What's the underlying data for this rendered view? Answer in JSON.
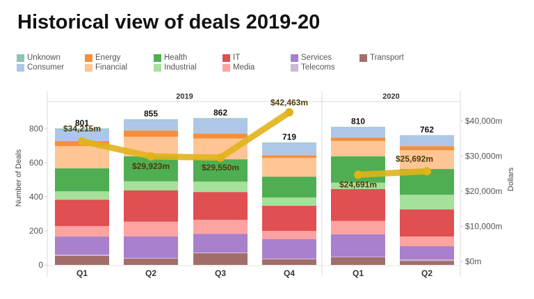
{
  "title": "Historical view of deals 2019-20",
  "legend": [
    {
      "name": "Unknown",
      "color": "#8fc3b7"
    },
    {
      "name": "Consumer",
      "color": "#aec7e8"
    },
    {
      "name": "Energy",
      "color": "#f58f3b"
    },
    {
      "name": "Financial",
      "color": "#ffc594"
    },
    {
      "name": "Health",
      "color": "#4fae52"
    },
    {
      "name": "Industrial",
      "color": "#a5e19a"
    },
    {
      "name": "IT",
      "color": "#e04f51"
    },
    {
      "name": "Media",
      "color": "#ffa3a1"
    },
    {
      "name": "Services",
      "color": "#a980cb"
    },
    {
      "name": "Telecoms",
      "color": "#cdb8dc"
    },
    {
      "name": "Transport",
      "color": "#a26e69"
    }
  ],
  "chart_data": {
    "type": "bar",
    "stacked": true,
    "title": "Historical view of deals 2019-20",
    "groups": [
      {
        "label": "2019",
        "categories": [
          "Q1",
          "Q2",
          "Q3",
          "Q4"
        ]
      },
      {
        "label": "2020",
        "categories": [
          "Q1",
          "Q2"
        ]
      }
    ],
    "categories": [
      "2019 Q1",
      "2019 Q2",
      "2019 Q3",
      "2019 Q4",
      "2020 Q1",
      "2020 Q2"
    ],
    "x_tick_labels": [
      "Q1",
      "Q2",
      "Q3",
      "Q4",
      "Q1",
      "Q2"
    ],
    "stack_order_bottom_to_top": [
      "Transport",
      "Telecoms",
      "Services",
      "Media",
      "IT",
      "Industrial",
      "Health",
      "Financial",
      "Energy",
      "Consumer",
      "Unknown"
    ],
    "series": [
      {
        "name": "Transport",
        "values": [
          53,
          37,
          69,
          33,
          45,
          24
        ]
      },
      {
        "name": "Telecoms",
        "values": [
          8,
          4,
          4,
          4,
          4,
          8
        ]
      },
      {
        "name": "Services",
        "values": [
          106,
          127,
          110,
          114,
          131,
          78
        ]
      },
      {
        "name": "Media",
        "values": [
          61,
          86,
          82,
          49,
          78,
          57
        ]
      },
      {
        "name": "IT",
        "values": [
          155,
          184,
          163,
          147,
          188,
          159
        ]
      },
      {
        "name": "Industrial",
        "values": [
          49,
          53,
          61,
          49,
          37,
          86
        ]
      },
      {
        "name": "Health",
        "values": [
          135,
          147,
          131,
          122,
          155,
          151
        ]
      },
      {
        "name": "Financial",
        "values": [
          131,
          114,
          122,
          110,
          90,
          110
        ]
      },
      {
        "name": "Energy",
        "values": [
          29,
          37,
          29,
          16,
          20,
          24
        ]
      },
      {
        "name": "Consumer",
        "values": [
          69,
          62,
          87,
          71,
          58,
          65
        ]
      },
      {
        "name": "Unknown",
        "values": [
          5,
          4,
          4,
          4,
          4,
          0
        ]
      }
    ],
    "totals": [
      801,
      855,
      862,
      719,
      810,
      762
    ],
    "total_labels": [
      "801",
      "855",
      "862",
      "719",
      "810",
      "762"
    ],
    "line_series": {
      "name": "Dollars",
      "values": [
        34215,
        29923,
        29550,
        42463,
        24691,
        25692
      ],
      "labels": [
        "$34,215m",
        "$29,923m",
        "$29,550m",
        "$42,463m",
        "$24,691m",
        "$25,692m"
      ],
      "color": "#e0b21b"
    },
    "y_left": {
      "label": "Number of Deals",
      "range": [
        0,
        1000
      ],
      "ticks": [
        0,
        200,
        400,
        600,
        800
      ],
      "tick_labels": [
        "0",
        "200",
        "400",
        "600",
        "800"
      ]
    },
    "y_right": {
      "label": "Dollars",
      "range": [
        0,
        45000
      ],
      "ticks": [
        0,
        10000,
        20000,
        30000,
        40000
      ],
      "tick_labels": [
        "$0m",
        "$10,000m",
        "$20,000m",
        "$30,000m",
        "$40,000m"
      ]
    },
    "legend_position": "top",
    "grid": false
  }
}
